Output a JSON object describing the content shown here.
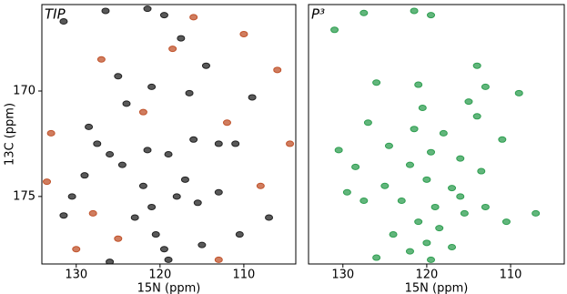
{
  "chart_data": [
    {
      "type": "scatter",
      "title": "TIP",
      "x_label": "15N (ppm)",
      "y_label": "13C (ppm)",
      "xlim": [
        134.1,
        103.8
      ],
      "ylim": [
        165.9,
        178.2
      ],
      "xticks": [
        130,
        120,
        110
      ],
      "yticks": [
        170,
        175
      ],
      "series": [
        {
          "color": "#222222",
          "x": [
            120.5,
            119.5,
            121,
            118,
            122,
            124.5,
            126,
            127.5,
            123,
            117,
            115.5,
            119,
            121.5,
            116,
            113,
            117.5,
            121.5,
            119.5,
            126.5,
            131.5,
            125,
            114.5,
            121,
            116.5,
            109,
            124,
            128.5,
            126,
            131.5,
            130.5,
            110.5,
            107,
            111,
            113,
            129,
            119,
            115
          ],
          "values": [
            176.8,
            177.5,
            175.5,
            175,
            174.5,
            173.5,
            173,
            172.5,
            176,
            174.2,
            175.3,
            173,
            172.8,
            172.3,
            172.5,
            167.5,
            166.1,
            166.4,
            166.2,
            166.7,
            169.3,
            168.8,
            169.8,
            170.1,
            170.3,
            170.6,
            171.7,
            178.1,
            175.9,
            175,
            176.8,
            176,
            172.5,
            174.8,
            174,
            178,
            177.3
          ]
        },
        {
          "color": "#c0522a",
          "x": [
            133,
            127,
            118.5,
            112,
            106,
            104.5,
            130,
            125,
            113,
            108,
            116,
            110,
            133.5,
            122,
            128
          ],
          "values": [
            172,
            168.5,
            168,
            171.5,
            169,
            172.5,
            177.5,
            177,
            178,
            174.5,
            166.5,
            167.3,
            174.3,
            171,
            175.8
          ]
        }
      ]
    },
    {
      "type": "scatter",
      "title": "P³",
      "x_label": "15N (ppm)",
      "xlim": [
        134.1,
        103.6
      ],
      "ylim": [
        165.9,
        178.2
      ],
      "xticks": [
        130,
        120,
        110
      ],
      "series": [
        {
          "color": "#2e9e50",
          "x": [
            121.5,
            119.5,
            127.5,
            131,
            114,
            126,
            121,
            113,
            109,
            115,
            127,
            121.5,
            118,
            111,
            130.5,
            124.5,
            119.5,
            116,
            122,
            128.5,
            113.5,
            120,
            125,
            117,
            123,
            119,
            115.5,
            121,
            118.5,
            110.5,
            107,
            124,
            120,
            122,
            117,
            119.5,
            126,
            116,
            113,
            127.5,
            129.5,
            114,
            120.5
          ],
          "values": [
            166.2,
            166.4,
            166.3,
            167.1,
            168.8,
            169.6,
            169.7,
            169.8,
            170.1,
            170.5,
            171.5,
            171.8,
            172,
            172.3,
            172.8,
            172.6,
            172.9,
            173.2,
            173.5,
            173.6,
            173.8,
            174.2,
            174.5,
            174.6,
            175.2,
            175.5,
            175.8,
            176.2,
            176.5,
            176.2,
            175.8,
            176.8,
            177.2,
            177.6,
            177.4,
            178,
            177.9,
            175,
            175.5,
            175.2,
            174.8,
            171.2,
            170.8
          ]
        }
      ]
    }
  ]
}
